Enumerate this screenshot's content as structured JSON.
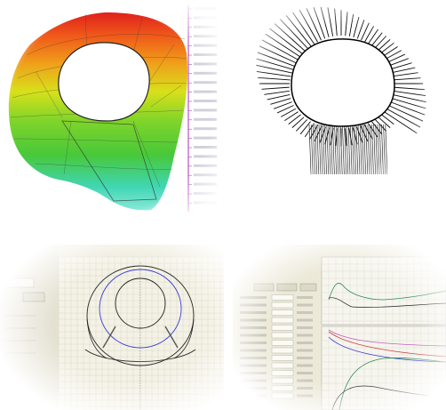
{
  "colors": {
    "background": "#ffffff",
    "contour_red": "#e0201c",
    "contour_orange": "#f08a1a",
    "contour_yellow": "#e6e21a",
    "contour_green": "#48c83a",
    "contour_cyan": "#3fd6b2",
    "grid_panel_bg": "#ece9d8",
    "plot_blue": "#3b3bd8",
    "plot_black": "#222222",
    "plot_red": "#d04040",
    "plot_green": "#2e8b57",
    "plot_magenta": "#c060c0"
  },
  "icons": {
    "contour_plot": "tunnel-contour-icon",
    "vector_plot": "tunnel-vector-field-icon",
    "cad_window": "cad-cross-section-icon",
    "graph_window": "curve-graph-icon"
  }
}
